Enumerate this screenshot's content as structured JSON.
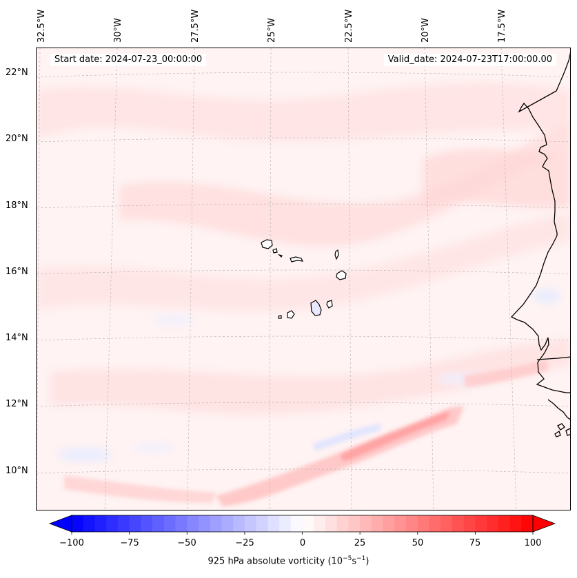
{
  "map": {
    "longitude_labels": [
      "32.5°W",
      "30°W",
      "27.5°W",
      "25°W",
      "22.5°W",
      "20°W",
      "17.5°W"
    ],
    "latitude_labels": [
      "22°N",
      "20°N",
      "18°N",
      "16°N",
      "14°N",
      "12°N",
      "10°N"
    ],
    "start_date": "Start date: 2024-07-23_00:00:00",
    "valid_date": "Valid_date: 2024-07-23T17:00:00.00",
    "field": "925 hPa absolute vorticity",
    "colors": {
      "negative": "#0000ff",
      "positive": "#ff0000",
      "neutral": "#ffffff",
      "coast": "#000000",
      "grid": "#b0b0b0"
    }
  },
  "colorbar": {
    "label": "925 hPa absolute vorticity (10",
    "label_exp1": "−5",
    "label_mid": "s",
    "label_exp2": "−1",
    "label_end": ")",
    "min": -100,
    "max": 100,
    "ticks": [
      "−100",
      "−75",
      "−50",
      "−25",
      "0",
      "25",
      "50",
      "75",
      "100"
    ],
    "tick_values": [
      -100,
      -75,
      -50,
      -25,
      0,
      25,
      50,
      75,
      100
    ],
    "levels": 40
  }
}
